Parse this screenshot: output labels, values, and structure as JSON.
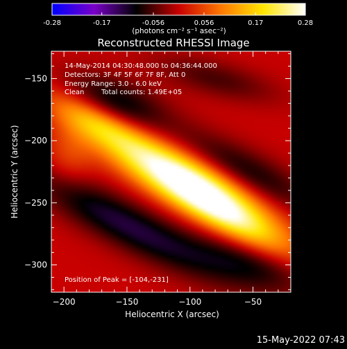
{
  "chart_data": {
    "type": "heatmap",
    "title": "Reconstructed RHESSI Image",
    "xlabel": "Heliocentric X (arcsec)",
    "ylabel": "Heliocentric Y (arcsec)",
    "xlim": [
      -210,
      -20
    ],
    "ylim": [
      -322,
      -128
    ],
    "x_ticks": [
      -200,
      -150,
      -100,
      -50
    ],
    "y_ticks": [
      -150,
      -200,
      -250,
      -300
    ],
    "colorbar": {
      "range": [
        -0.28,
        0.28
      ],
      "tick_values": [
        -0.28,
        -0.17,
        -0.056,
        0.056,
        0.17,
        0.28
      ],
      "tick_labels": [
        "-0.28",
        "-0.17",
        "-0.056",
        "0.056",
        "0.17",
        "0.28"
      ],
      "units_label": "(photons cm⁻² s⁻¹ asec⁻²)",
      "colors": [
        "#0000ff",
        "#7a00c8",
        "#000000",
        "#c80000",
        "#ff7800",
        "#ffe600",
        "#ffffff"
      ]
    },
    "annotations": {
      "time_range": "14-May-2014 04:30:48.000 to 04:36:44.000",
      "detectors": "Detectors: 3F 4F 5F 6F 7F 8F, Att 0",
      "energy": "Energy Range: 3.0 - 6.0 keV",
      "clean_label": "Clean",
      "total_counts": "Total counts: 1.49E+05",
      "peak": "Position of Peak = [-104,-231]"
    },
    "peak": {
      "x": -104,
      "y": -231,
      "value": 0.28
    },
    "components": [
      {
        "x": -104,
        "y": -231,
        "amp": 0.3,
        "sx": 48,
        "sy": 13,
        "angle_deg": 28
      },
      {
        "x": -175,
        "y": -185,
        "amp": 0.14,
        "sx": 30,
        "sy": 10,
        "angle_deg": 28
      },
      {
        "x": -70,
        "y": -262,
        "amp": 0.15,
        "sx": 40,
        "sy": 10,
        "angle_deg": 28
      },
      {
        "x": -195,
        "y": -210,
        "amp": 0.05,
        "sx": 14,
        "sy": 18,
        "angle_deg": 0
      },
      {
        "x": -160,
        "y": -170,
        "amp": -0.1,
        "sx": 30,
        "sy": 14,
        "angle_deg": 20
      },
      {
        "x": -150,
        "y": -268,
        "amp": -0.12,
        "sx": 60,
        "sy": 13,
        "angle_deg": 28
      },
      {
        "x": -55,
        "y": -225,
        "amp": -0.09,
        "sx": 45,
        "sy": 12,
        "angle_deg": 28
      },
      {
        "x": -55,
        "y": -300,
        "amp": -0.08,
        "sx": 35,
        "sy": 12,
        "angle_deg": 20
      },
      {
        "x": -80,
        "y": -150,
        "amp": -0.06,
        "sx": 35,
        "sy": 10,
        "angle_deg": 15
      }
    ]
  },
  "footer": {
    "timestamp": "15-May-2022 07:43"
  }
}
